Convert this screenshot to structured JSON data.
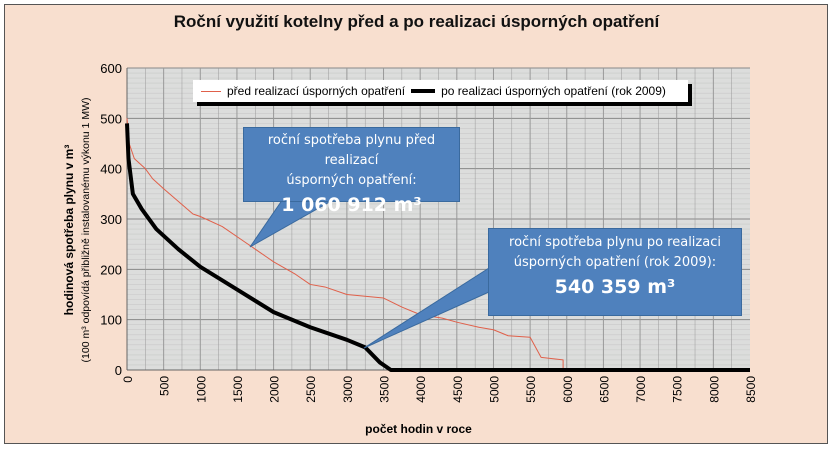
{
  "chart_data": {
    "type": "line",
    "title": "Roční využití kotelny před a po realizaci úsporných opatření",
    "xlabel": "počet hodin v roce",
    "ylabel": "hodinová spotřeba plynu v m³",
    "ylabel2": "(100 m³ odpovídá přibližně instalovanému výkonu 1 MW)",
    "xlim": [
      0,
      8500
    ],
    "ylim": [
      0,
      600
    ],
    "xticks": [
      0,
      500,
      1000,
      1500,
      2000,
      2500,
      3000,
      3500,
      4000,
      4500,
      5000,
      5500,
      6000,
      6500,
      7000,
      7500,
      8000,
      8500
    ],
    "yticks": [
      0,
      100,
      200,
      300,
      400,
      500,
      600
    ],
    "grid": true,
    "legend_position": "top",
    "series": [
      {
        "name": "před realizací úsporných opatření",
        "color": "#e0604a",
        "x": [
          0,
          30,
          100,
          250,
          350,
          500,
          700,
          900,
          1000,
          1300,
          1600,
          1750,
          1900,
          2000,
          2300,
          2500,
          2700,
          3000,
          3500,
          3750,
          4000,
          4300,
          4500,
          4800,
          5000,
          5200,
          5500,
          5650,
          5950,
          5950
        ],
        "y": [
          500,
          450,
          420,
          400,
          380,
          360,
          335,
          310,
          305,
          285,
          255,
          240,
          225,
          215,
          190,
          170,
          165,
          150,
          143,
          125,
          110,
          103,
          95,
          85,
          80,
          68,
          65,
          25,
          20,
          0
        ]
      },
      {
        "name": "po realizaci úsporných opatření (rok 2009)",
        "color": "#000000",
        "x": [
          0,
          20,
          80,
          200,
          400,
          700,
          1000,
          1500,
          2000,
          2500,
          3000,
          3250,
          3450,
          3600,
          8500
        ],
        "y": [
          490,
          420,
          350,
          320,
          280,
          240,
          205,
          160,
          115,
          85,
          60,
          45,
          15,
          0,
          0
        ]
      }
    ]
  },
  "callouts": [
    {
      "text1": "roční spotřeba plynu před realizací",
      "text2": "úsporných opatření:",
      "value": "1 060 912 m³"
    },
    {
      "text1": "roční spotřeba plynu po realizaci",
      "text2": "úsporných opatření (rok 2009):",
      "value": "540 359 m³"
    }
  ]
}
